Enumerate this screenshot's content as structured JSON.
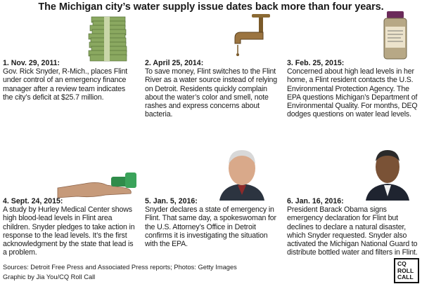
{
  "title": "The Michigan city’s water supply issue dates back more than four years.",
  "entries": [
    {
      "head": "1. Nov. 29, 2011:",
      "body": "Gov. Rick Snyder, R-Mich., places Flint under control of an emergency finance manager after a review team indicates the city’s deficit at $25.7 million.",
      "photo": "stacks-of-cash-photo"
    },
    {
      "head": "2. April 25, 2014:",
      "body": "To save money, Flint switches to the Flint River as a water source instead of relying on Detroit. Residents quickly complain about the water’s color and smell, note rashes and express concerns about bacteria.",
      "photo": "water-faucet-photo"
    },
    {
      "head": "3. Feb. 25, 2015:",
      "body": "Concerned about high lead levels in her home, a Flint resident contacts the U.S. Environmental Protection Agency. The EPA questions Michigan’s Department of Environmental Quality. For months, DEQ dodges questions on water lead levels.",
      "photo": "water-sample-bottle-photo"
    },
    {
      "head": "4. Sept. 24, 2015:",
      "body": "A study by Hurley Medical Center shows high blood-lead levels in Flint area children. Snyder pledges to take action in response to the lead levels. It’s the first acknowledgment by the state that lead is a problem.",
      "photo": "blood-test-hand-photo"
    },
    {
      "head": "5. Jan. 5, 2016:",
      "body": "Snyder declares a state of emergency in Flint. That same day, a spokeswoman for the U.S. Attorney’s Office in Detroit confirms it is investigating the situation with the EPA.",
      "photo": "rick-snyder-portrait-photo"
    },
    {
      "head": "6. Jan. 16, 2016:",
      "body": "President Barack Obama signs emergency declaration for Flint but declines to declare a natural disaster, which Snyder requested. Snyder also activated the Michigan National Guard to distribute bottled water and filters in Flint.",
      "photo": "barack-obama-portrait-photo"
    }
  ],
  "footer": {
    "sources": "Sources: Detroit Free Press and Associated Press reports; Photos: Getty Images",
    "credit": "Graphic by Jia You/CQ Roll Call"
  },
  "logo": {
    "line1": "CQ",
    "line2": "ROLL",
    "line3": "CALL"
  }
}
